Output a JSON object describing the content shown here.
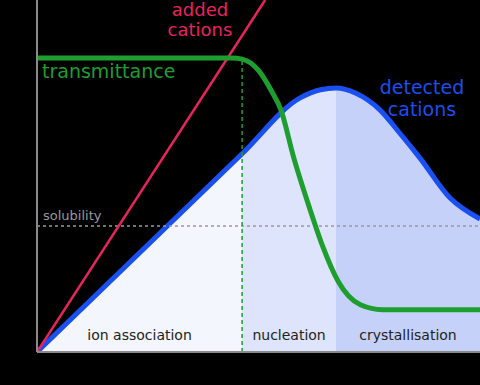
{
  "chart_data": {
    "type": "line",
    "xlim": [
      0,
      100
    ],
    "ylim": [
      0,
      100
    ],
    "tick_labels": false,
    "series": [
      {
        "name": "added cations",
        "color": "#e8245c",
        "x": [
          0,
          51.5
        ],
        "values": [
          0,
          100
        ]
      },
      {
        "name": "transmittance",
        "color": "#1e9e2e",
        "x": [
          0,
          44,
          46.3,
          50,
          53,
          55,
          58,
          61.5,
          64.5,
          68,
          73,
          78,
          100
        ],
        "values": [
          83.5,
          83.5,
          83.2,
          80,
          74,
          69,
          55,
          41,
          30,
          20,
          13.4,
          12,
          12
        ]
      },
      {
        "name": "detected cations",
        "color": "#1a4ff0",
        "type": "area",
        "x": [
          0,
          46.3,
          59.4,
          64,
          67.5,
          72,
          77.4,
          82,
          86.5,
          93.2,
          100
        ],
        "values": [
          0,
          56.3,
          72.2,
          74.5,
          75,
          73.5,
          68.8,
          62,
          55,
          43.8,
          37.8
        ]
      }
    ],
    "reference_lines": [
      {
        "label": "solubility",
        "y": 35.8,
        "color": "#999999"
      }
    ],
    "regions": [
      {
        "label": "ion association",
        "start": 0,
        "end": 46.3,
        "color": "#f4f6fd"
      },
      {
        "label": "nucleation",
        "start": 46.3,
        "end": 67.5,
        "color": "#dde4fb"
      },
      {
        "label": "crystallisation",
        "start": 67.5,
        "end": 100,
        "color": "#c5d1f8"
      }
    ]
  }
}
